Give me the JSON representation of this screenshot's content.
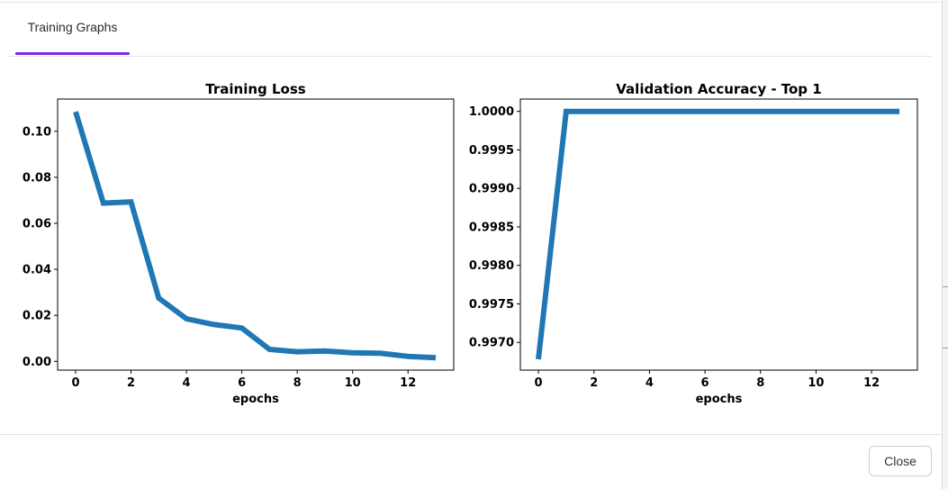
{
  "tabs": [
    {
      "label": "Training Graphs",
      "active": true
    }
  ],
  "footer": {
    "close_label": "Close"
  },
  "colors": {
    "accent": "#7c2ae8",
    "series": "#1f77b4"
  },
  "chart_data": [
    {
      "type": "line",
      "title": "Training Loss",
      "xlabel": "epochs",
      "ylabel": "",
      "x": [
        0,
        1,
        2,
        3,
        4,
        5,
        6,
        7,
        8,
        9,
        10,
        11,
        12,
        13
      ],
      "series": [
        {
          "values": [
            0.1085,
            0.0688,
            0.0693,
            0.0275,
            0.0185,
            0.016,
            0.0145,
            0.0052,
            0.0042,
            0.0045,
            0.0037,
            0.0035,
            0.0022,
            0.0016
          ]
        }
      ],
      "xlim": [
        -0.65,
        13.65
      ],
      "ylim": [
        -0.0038,
        0.114
      ],
      "xticks": [
        0,
        2,
        4,
        6,
        8,
        10,
        12
      ],
      "yticks": [
        0.0,
        0.02,
        0.04,
        0.06,
        0.08,
        0.1
      ],
      "ytick_labels": [
        "0.00",
        "0.02",
        "0.04",
        "0.06",
        "0.08",
        "0.10"
      ],
      "grid": false,
      "legend": "none"
    },
    {
      "type": "line",
      "title": "Validation Accuracy - Top 1",
      "xlabel": "epochs",
      "ylabel": "",
      "x": [
        0,
        1,
        2,
        3,
        4,
        5,
        6,
        7,
        8,
        9,
        10,
        11,
        12,
        13
      ],
      "series": [
        {
          "values": [
            0.99678,
            1.0,
            1.0,
            1.0,
            1.0,
            1.0,
            1.0,
            1.0,
            1.0,
            1.0,
            1.0,
            1.0,
            1.0,
            1.0
          ]
        }
      ],
      "xlim": [
        -0.65,
        13.65
      ],
      "ylim": [
        0.99664,
        1.00016
      ],
      "xticks": [
        0,
        2,
        4,
        6,
        8,
        10,
        12
      ],
      "yticks": [
        0.997,
        0.9975,
        0.998,
        0.9985,
        0.999,
        0.9995,
        1.0
      ],
      "ytick_labels": [
        "0.9970",
        "0.9975",
        "0.9980",
        "0.9985",
        "0.9990",
        "0.9995",
        "1.0000"
      ],
      "grid": false,
      "legend": "none"
    }
  ]
}
